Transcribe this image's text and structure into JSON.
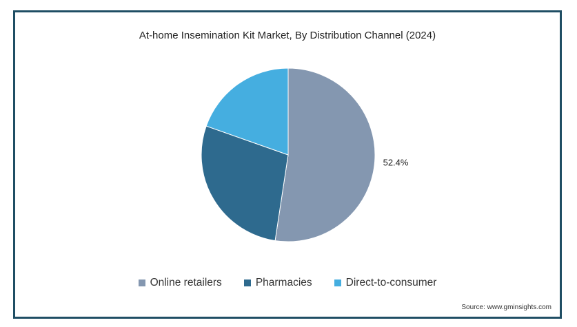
{
  "chart_data": {
    "type": "pie",
    "title": "At-home Insemination Kit Market, By Distribution Channel (2024)",
    "slices": [
      {
        "label": "Online retailers",
        "value": 52.4,
        "color": "#8497b0",
        "data_label": "52.4%"
      },
      {
        "label": "Pharmacies",
        "value": 28.0,
        "color": "#2e6a8e",
        "data_label": ""
      },
      {
        "label": "Direct-to-consumer",
        "value": 19.6,
        "color": "#45aee0",
        "data_label": ""
      }
    ],
    "legend_position": "bottom"
  },
  "source": "Source: www.gminsights.com"
}
